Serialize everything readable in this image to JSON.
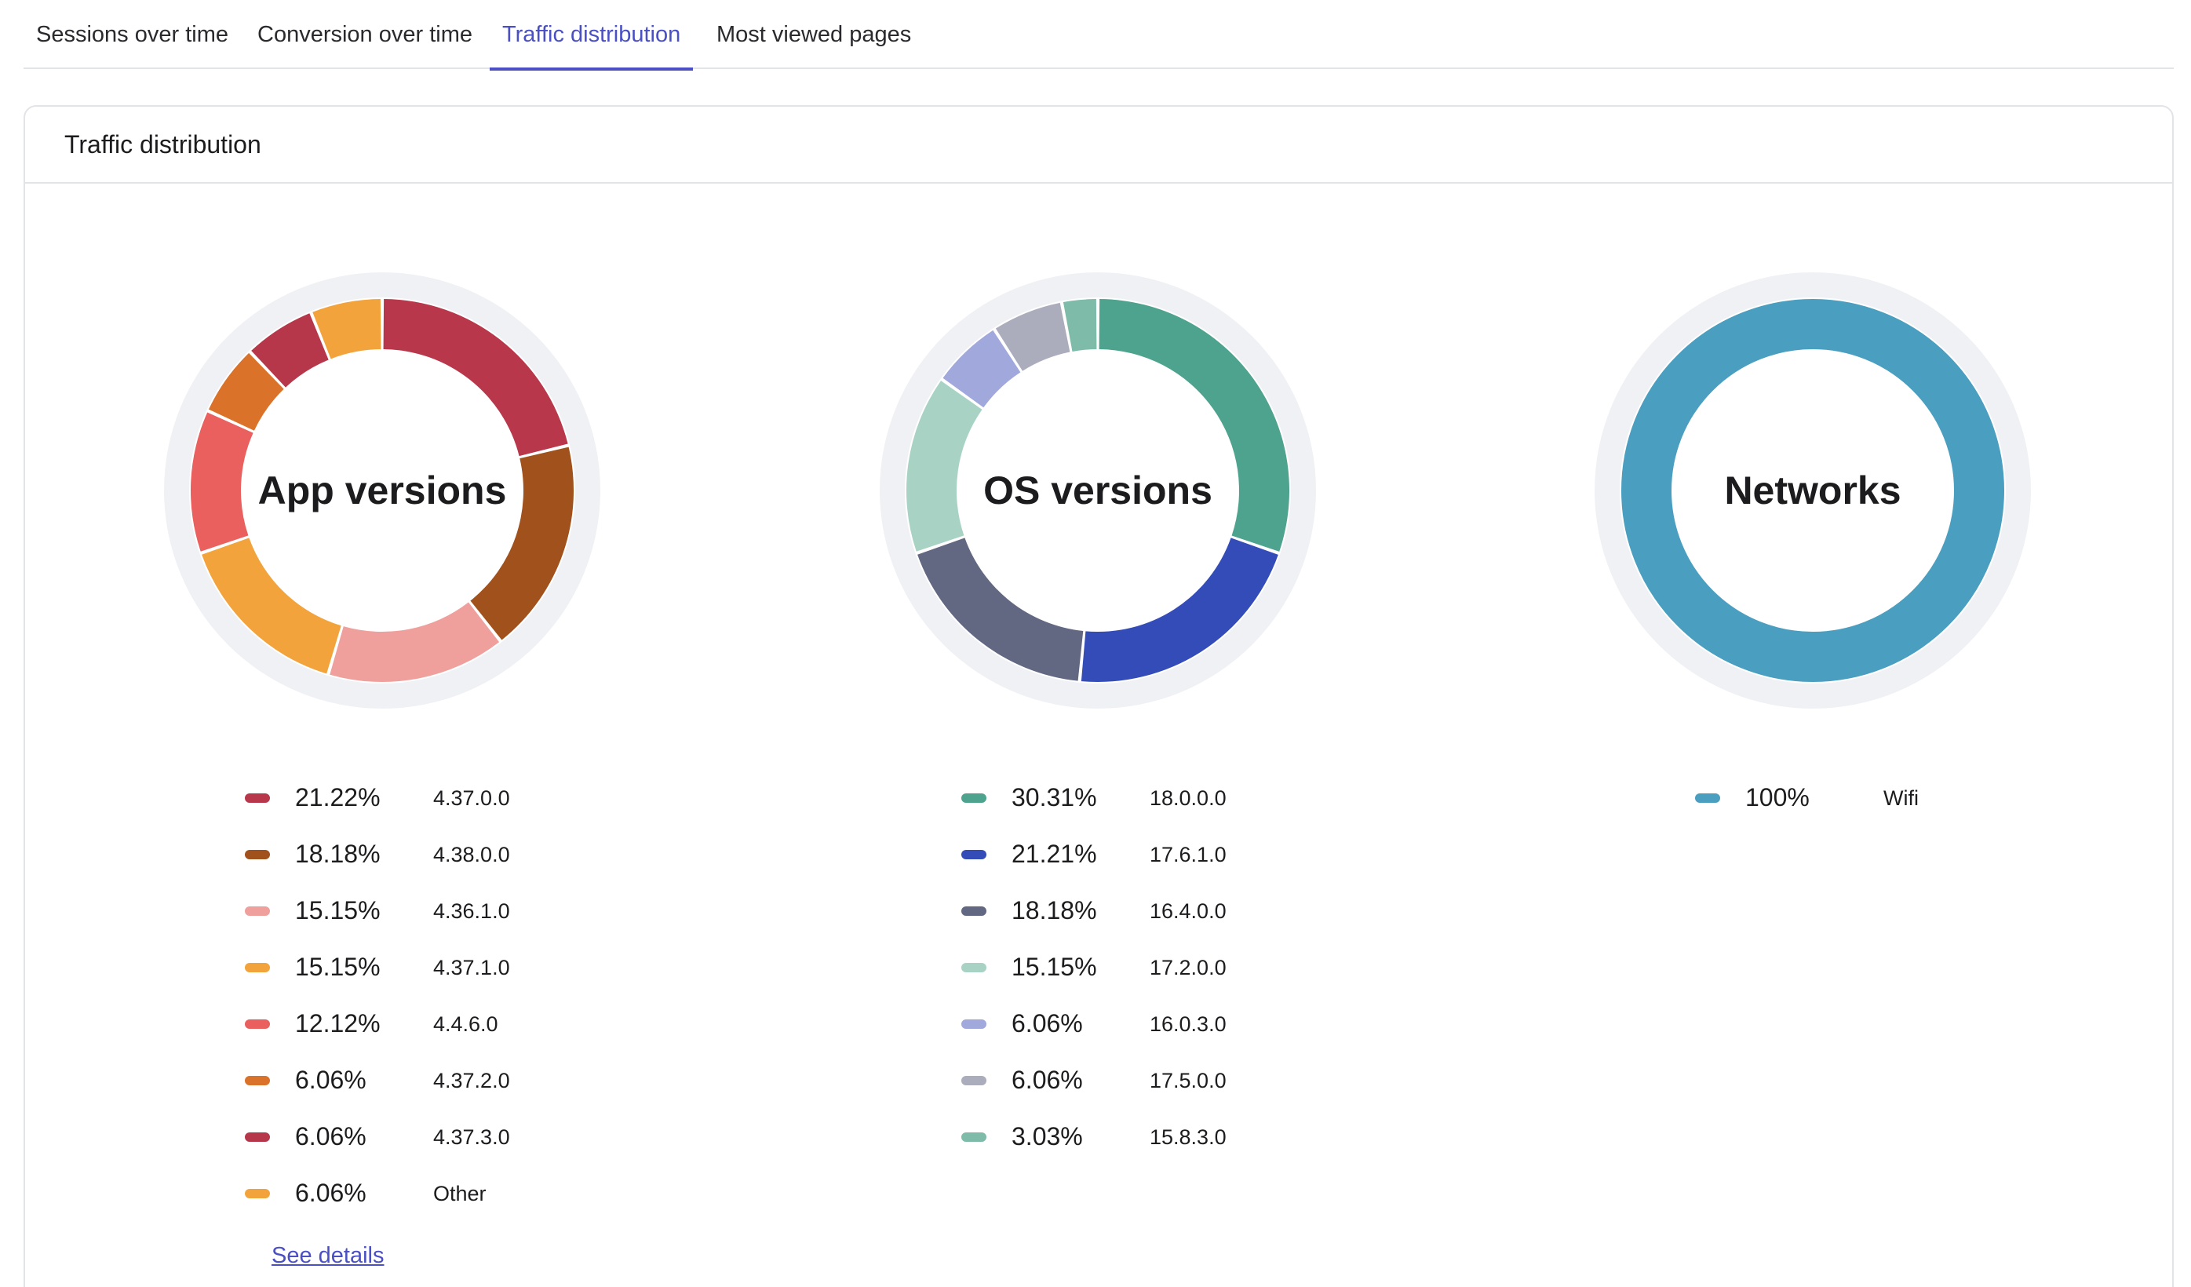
{
  "tabs": [
    {
      "label": "Sessions over time",
      "active": false
    },
    {
      "label": "Conversion over time",
      "active": false
    },
    {
      "label": "Traffic distribution",
      "active": true
    },
    {
      "label": "Most viewed pages",
      "active": false
    }
  ],
  "card": {
    "title": "Traffic distribution",
    "see_details": "See details"
  },
  "colors": {
    "accent": "#4a4fc4",
    "track": "#f0f1f5",
    "border": "#e3e4e8"
  },
  "chart_data": [
    {
      "type": "pie",
      "donut": true,
      "center_label": "App versions",
      "slices": [
        {
          "value": 21.22,
          "value_label": "21.22%",
          "label": "4.37.0.0",
          "color": "#b9374b"
        },
        {
          "value": 18.18,
          "value_label": "18.18%",
          "label": "4.38.0.0",
          "color": "#a0511c"
        },
        {
          "value": 15.15,
          "value_label": "15.15%",
          "label": "4.36.1.0",
          "color": "#f0a09c"
        },
        {
          "value": 15.15,
          "value_label": "15.15%",
          "label": "4.37.1.0",
          "color": "#f2a33c"
        },
        {
          "value": 12.12,
          "value_label": "12.12%",
          "label": "4.4.6.0",
          "color": "#e9605e"
        },
        {
          "value": 6.06,
          "value_label": "6.06%",
          "label": "4.37.2.0",
          "color": "#da722a"
        },
        {
          "value": 6.06,
          "value_label": "6.06%",
          "label": "4.37.3.0",
          "color": "#b7374a"
        },
        {
          "value": 6.06,
          "value_label": "6.06%",
          "label": "Other",
          "color": "#f2a33c"
        }
      ]
    },
    {
      "type": "pie",
      "donut": true,
      "center_label": "OS versions",
      "slices": [
        {
          "value": 30.31,
          "value_label": "30.31%",
          "label": "18.0.0.0",
          "color": "#4ea38e"
        },
        {
          "value": 21.21,
          "value_label": "21.21%",
          "label": "17.6.1.0",
          "color": "#344cb8"
        },
        {
          "value": 18.18,
          "value_label": "18.18%",
          "label": "16.4.0.0",
          "color": "#626782"
        },
        {
          "value": 15.15,
          "value_label": "15.15%",
          "label": "17.2.0.0",
          "color": "#a8d3c4"
        },
        {
          "value": 6.06,
          "value_label": "6.06%",
          "label": "16.0.3.0",
          "color": "#a1a8dc"
        },
        {
          "value": 6.06,
          "value_label": "6.06%",
          "label": "17.5.0.0",
          "color": "#abadbc"
        },
        {
          "value": 3.03,
          "value_label": "3.03%",
          "label": "15.8.3.0",
          "color": "#7ebba9"
        }
      ]
    },
    {
      "type": "pie",
      "donut": true,
      "center_label": "Networks",
      "slices": [
        {
          "value": 100,
          "value_label": "100%",
          "label": "Wifi",
          "color": "#4a9ebf"
        }
      ]
    }
  ]
}
